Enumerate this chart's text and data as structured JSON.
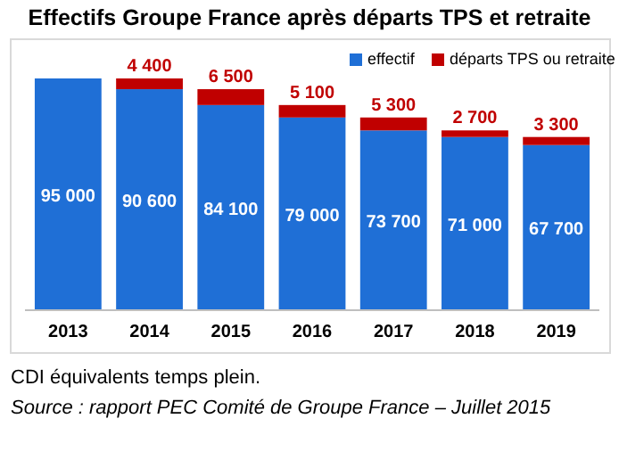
{
  "chart_data": {
    "type": "bar",
    "stacked": true,
    "title": "Effectifs Groupe France après départs TPS et retraite",
    "categories": [
      "2013",
      "2014",
      "2015",
      "2016",
      "2017",
      "2018",
      "2019"
    ],
    "series": [
      {
        "name": "effectif",
        "color": "#1f6fd6",
        "values": [
          95000,
          90600,
          84100,
          79000,
          73700,
          71000,
          67700
        ],
        "value_labels": [
          "95 000",
          "90 600",
          "84 100",
          "79 000",
          "73 700",
          "71 000",
          "67 700"
        ]
      },
      {
        "name": "départs TPS ou retraite",
        "color": "#c00000",
        "values": [
          null,
          4400,
          6500,
          5100,
          5300,
          2700,
          3300
        ],
        "value_labels": [
          null,
          "4 400",
          "6 500",
          "5 100",
          "5 300",
          "2 700",
          "3 300"
        ]
      }
    ],
    "legend": "top right",
    "annotations": [
      "CDI équivalents temps plein.",
      "Source : rapport PEC Comité de Groupe France – Juillet 2015"
    ]
  }
}
